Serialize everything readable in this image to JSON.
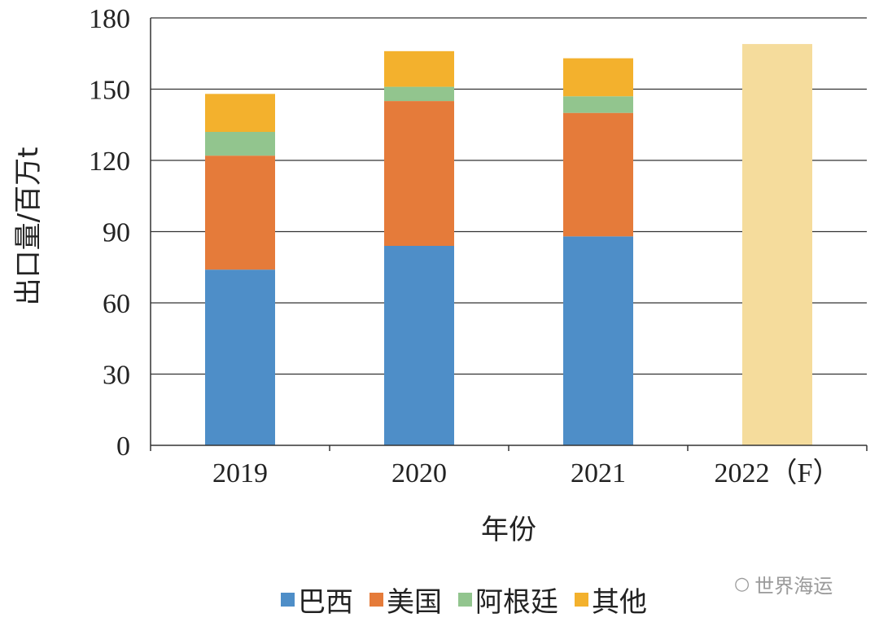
{
  "chart_data": {
    "type": "bar",
    "stacked": true,
    "title": "",
    "xlabel": "年份",
    "ylabel": "出口量/百万t",
    "ylim": [
      0,
      180
    ],
    "yticks": [
      0,
      30,
      60,
      90,
      120,
      150,
      180
    ],
    "categories": [
      "2019",
      "2020",
      "2021",
      "2022（F）"
    ],
    "series": [
      {
        "name": "巴西",
        "color": "#4e8ec8",
        "values": [
          74,
          84,
          88,
          null
        ]
      },
      {
        "name": "美国",
        "color": "#e57b3a",
        "values": [
          48,
          61,
          52,
          null
        ]
      },
      {
        "name": "阿根廷",
        "color": "#92c58e",
        "values": [
          10,
          6,
          7,
          null
        ]
      },
      {
        "name": "其他",
        "color": "#f3b12d",
        "values": [
          16,
          15,
          16,
          null
        ]
      }
    ],
    "forecast": {
      "category": "2022（F）",
      "total": 169,
      "color": "#f5dc9c"
    },
    "legend_position": "bottom"
  },
  "watermark": {
    "icon": "wechat-icon",
    "text": "世界海运"
  }
}
